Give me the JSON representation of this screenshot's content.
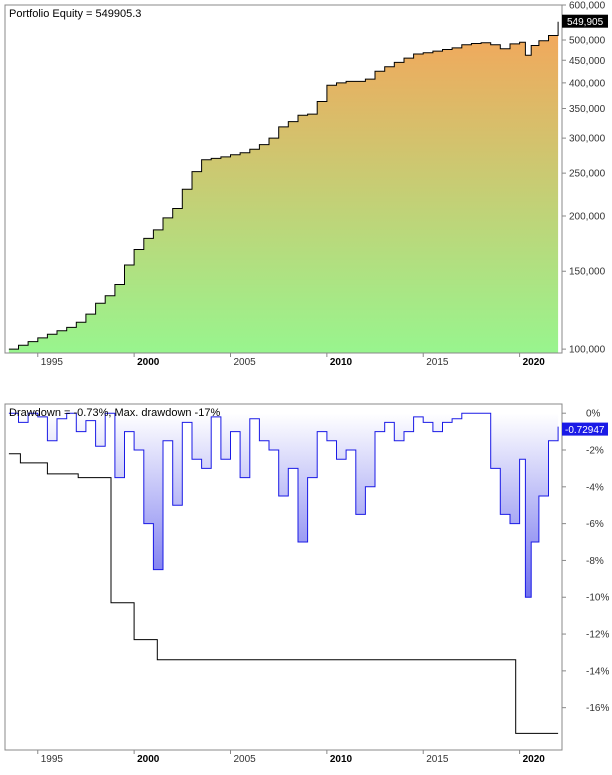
{
  "chart_data": [
    {
      "type": "area",
      "title": "Portfolio Equity = 549905.3",
      "scale": "log",
      "ylim": [
        98000,
        600000
      ],
      "xlim": [
        1993.3,
        2022.2
      ],
      "y_ticks": [
        {
          "v": 100000,
          "label": "100,000"
        },
        {
          "v": 150000,
          "label": "150,000"
        },
        {
          "v": 200000,
          "label": "200,000"
        },
        {
          "v": 250000,
          "label": "250,000"
        },
        {
          "v": 300000,
          "label": "300,000"
        },
        {
          "v": 350000,
          "label": "350,000"
        },
        {
          "v": 400000,
          "label": "400,000"
        },
        {
          "v": 450000,
          "label": "450,000"
        },
        {
          "v": 500000,
          "label": "500,000"
        },
        {
          "v": 600000,
          "label": "600,000"
        }
      ],
      "last_value_label": "549,905",
      "colors": {
        "line": "#000000",
        "fill_top": "#f5a55a",
        "fill_bottom": "#98f58e",
        "label_bg": "#000000"
      },
      "series": [
        {
          "x": [
            1993.5,
            1994.0,
            1994.5,
            1995.0,
            1995.5,
            1996.0,
            1996.5,
            1997.0,
            1997.5,
            1998.0,
            1998.5,
            1999.0,
            1999.5,
            2000.0,
            2000.5,
            2001.0,
            2001.5,
            2002.0,
            2002.5,
            2003.0,
            2003.5,
            2004.0,
            2004.5,
            2005.0,
            2005.5,
            2006.0,
            2006.5,
            2007.0,
            2007.5,
            2008.0,
            2008.5,
            2009.0,
            2009.5,
            2010.0,
            2010.5,
            2011.0,
            2011.5,
            2012.0,
            2012.5,
            2013.0,
            2013.5,
            2014.0,
            2014.5,
            2015.0,
            2015.5,
            2016.0,
            2016.5,
            2017.0,
            2017.5,
            2018.0,
            2018.5,
            2019.0,
            2019.5,
            2020.0,
            2020.3,
            2020.6,
            2021.0,
            2021.5,
            2022.0
          ],
          "y": [
            100000,
            102000,
            104000,
            106000,
            108000,
            110000,
            112000,
            115000,
            120000,
            127000,
            132000,
            140000,
            155000,
            168000,
            178000,
            186000,
            198000,
            208000,
            230000,
            252000,
            268000,
            270000,
            272000,
            275000,
            278000,
            283000,
            290000,
            300000,
            318000,
            327000,
            338000,
            340000,
            363000,
            395000,
            400000,
            403000,
            403000,
            408000,
            425000,
            435000,
            445000,
            455000,
            465000,
            468000,
            472000,
            476000,
            480000,
            488000,
            491000,
            493000,
            488000,
            478000,
            490000,
            494000,
            462000,
            486000,
            498000,
            512000,
            549905
          ]
        }
      ]
    },
    {
      "type": "area",
      "title": "Drawdown = -0.73%, Max. drawdown -17%",
      "ylim": [
        -18.3,
        0.5
      ],
      "xlim": [
        1993.3,
        2022.2
      ],
      "y_ticks": [
        {
          "v": 0,
          "label": "0%"
        },
        {
          "v": -2,
          "label": "-2%"
        },
        {
          "v": -4,
          "label": "-4%"
        },
        {
          "v": -6,
          "label": "-6%"
        },
        {
          "v": -8,
          "label": "-8%"
        },
        {
          "v": -10,
          "label": "-10%"
        },
        {
          "v": -12,
          "label": "-12%"
        },
        {
          "v": -14,
          "label": "-14%"
        },
        {
          "v": -16,
          "label": "-16%"
        }
      ],
      "last_value_label": "-0.72947",
      "colors": {
        "line": "#1a1ae6",
        "max_line": "#000000",
        "fill": "#7070ee",
        "label_bg": "#1a1ae6"
      },
      "series": [
        {
          "x": [
            1993.5,
            1994.0,
            1994.5,
            1995.0,
            1995.5,
            1996.0,
            1996.5,
            1997.0,
            1997.5,
            1998.0,
            1998.5,
            1999.0,
            1999.5,
            2000.0,
            2000.5,
            2001.0,
            2001.5,
            2002.0,
            2002.5,
            2003.0,
            2003.5,
            2004.0,
            2004.5,
            2005.0,
            2005.5,
            2006.0,
            2006.5,
            2007.0,
            2007.5,
            2008.0,
            2008.5,
            2009.0,
            2009.5,
            2010.0,
            2010.5,
            2011.0,
            2011.5,
            2012.0,
            2012.5,
            2013.0,
            2013.5,
            2014.0,
            2014.5,
            2015.0,
            2015.5,
            2016.0,
            2016.5,
            2017.0,
            2017.5,
            2018.0,
            2018.5,
            2019.0,
            2019.5,
            2020.0,
            2020.3,
            2020.6,
            2021.0,
            2021.5,
            2022.0
          ],
          "y": [
            0,
            -0.5,
            0,
            -0.2,
            -1.5,
            -0.3,
            0,
            -1.0,
            -0.4,
            -1.8,
            0,
            -3.5,
            -1.0,
            -2.0,
            -6.0,
            -8.5,
            -1.5,
            -5.0,
            -0.5,
            -2.5,
            -3.0,
            -0.2,
            -2.5,
            -1.0,
            -3.5,
            -0.3,
            -1.5,
            -2.0,
            -4.5,
            -3.0,
            -7.0,
            -3.5,
            -1.0,
            -1.5,
            -2.5,
            -2.0,
            -5.5,
            -4.0,
            -1.0,
            -0.5,
            -1.5,
            -1.0,
            -0.2,
            -0.5,
            -1.0,
            -0.5,
            -0.3,
            0,
            0,
            0,
            -3.0,
            -5.5,
            -6.0,
            -2.5,
            -10.0,
            -7.0,
            -4.5,
            -1.5,
            -0.73
          ]
        }
      ],
      "max_drawdown_envelope": {
        "x": [
          1993.5,
          1994.1,
          1994.1,
          1995.5,
          1995.5,
          1997.1,
          1997.1,
          1998.8,
          1998.8,
          2000.0,
          2000.0,
          2001.2,
          2001.2,
          2001.9,
          2001.9,
          2008.5,
          2008.5,
          2019.8,
          2019.8,
          2022.0
        ],
        "y": [
          -2.2,
          -2.2,
          -2.7,
          -2.7,
          -3.3,
          -3.3,
          -3.5,
          -3.5,
          -10.3,
          -10.3,
          -12.3,
          -12.3,
          -13.4,
          -13.4,
          -13.4,
          -13.4,
          -13.4,
          -13.4,
          -17.4,
          -17.4
        ]
      }
    }
  ],
  "x_axis_labels": [
    {
      "year": 1995,
      "label": "1995",
      "major": false
    },
    {
      "year": 2000,
      "label": "2000",
      "major": true
    },
    {
      "year": 2005,
      "label": "2005",
      "major": false
    },
    {
      "year": 2010,
      "label": "2010",
      "major": true
    },
    {
      "year": 2015,
      "label": "2015",
      "major": false
    },
    {
      "year": 2020,
      "label": "2020",
      "major": true
    }
  ]
}
